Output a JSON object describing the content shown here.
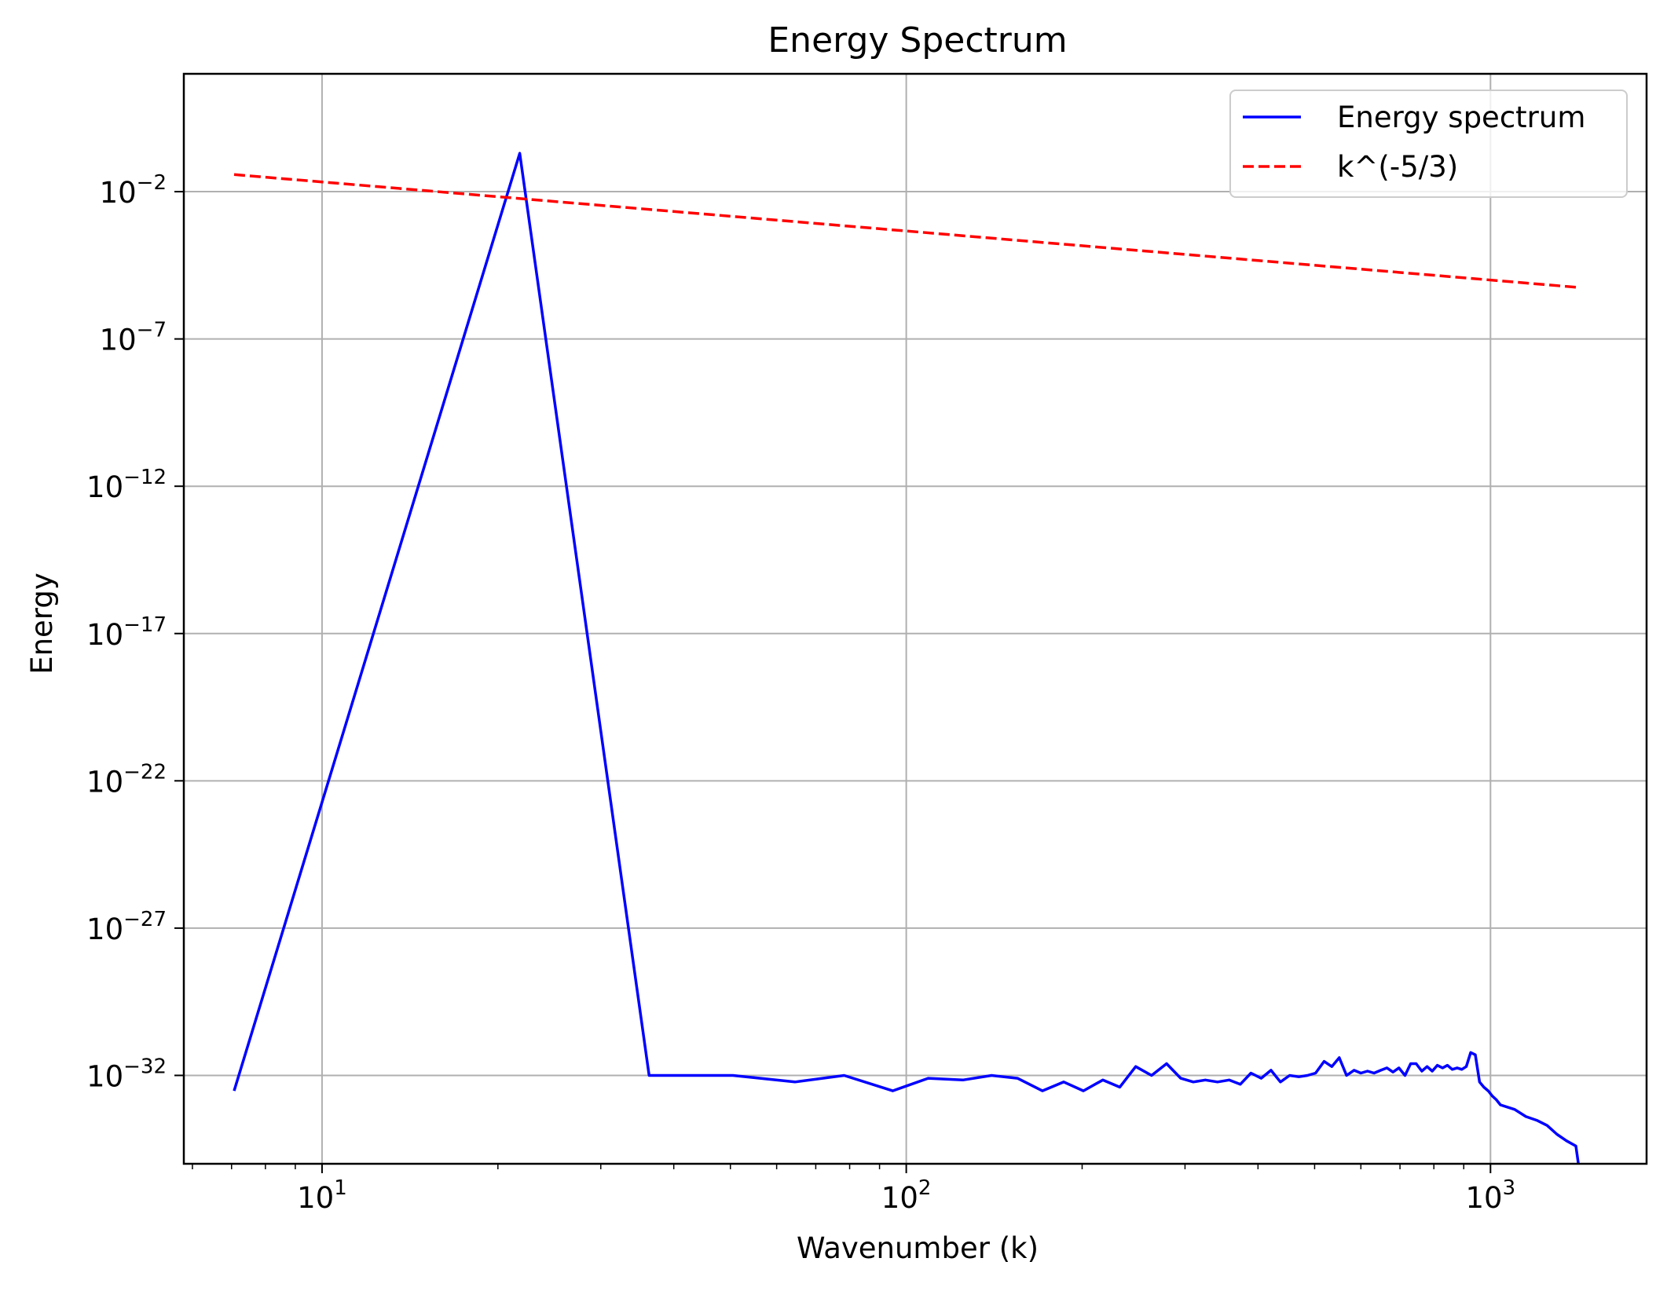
{
  "chart_data": {
    "type": "line",
    "title": "Energy Spectrum",
    "xlabel": "Wavenumber (k)",
    "ylabel": "Energy",
    "xscale": "log",
    "yscale": "log",
    "xlim": [
      5.8,
      1850
    ],
    "ylim": [
      1e-35,
      100.0
    ],
    "grid": true,
    "legend_position": "top-right",
    "x_ticks": [
      {
        "base": "10",
        "exp": "1",
        "value": 10
      },
      {
        "base": "10",
        "exp": "2",
        "value": 100
      },
      {
        "base": "10",
        "exp": "3",
        "value": 1000
      }
    ],
    "y_ticks": [
      {
        "base": "10",
        "exp": "−2",
        "value": 0.01
      },
      {
        "base": "10",
        "exp": "−7",
        "value": 1e-07
      },
      {
        "base": "10",
        "exp": "−12",
        "value": 1e-12
      },
      {
        "base": "10",
        "exp": "−17",
        "value": 1e-17
      },
      {
        "base": "10",
        "exp": "−22",
        "value": 1e-22
      },
      {
        "base": "10",
        "exp": "−27",
        "value": 1e-27
      },
      {
        "base": "10",
        "exp": "−32",
        "value": 1e-32
      }
    ],
    "series": [
      {
        "name": "Energy spectrum",
        "color": "#0000ff",
        "style": "solid",
        "x": [
          7.07,
          21.8,
          36.3,
          50.5,
          64.5,
          78.3,
          94.8,
          109,
          125,
          140,
          155,
          171,
          186,
          201,
          217,
          232,
          247,
          263,
          279,
          295,
          310,
          325,
          341,
          357,
          373,
          389,
          405,
          421,
          437,
          453,
          470,
          486,
          502,
          519,
          535,
          551,
          567,
          584,
          600,
          616,
          632,
          649,
          665,
          681,
          697,
          714,
          730,
          746,
          763,
          779,
          795,
          811,
          828,
          844,
          860,
          877,
          893,
          909,
          925,
          942,
          958,
          974,
          991,
          1007,
          1023,
          1040,
          1100,
          1150,
          1200,
          1250,
          1300,
          1350,
          1400,
          1414
        ],
        "y": [
          3e-33,
          0.2,
          1e-32,
          1e-32,
          6e-33,
          1e-32,
          3e-33,
          8e-33,
          7e-33,
          1e-32,
          8e-33,
          3e-33,
          6e-33,
          3e-33,
          7e-33,
          4e-33,
          2e-32,
          1e-32,
          2.5e-32,
          8e-33,
          6e-33,
          7e-33,
          6e-33,
          7e-33,
          5e-33,
          1.2e-32,
          8e-33,
          1.5e-32,
          6e-33,
          1e-32,
          9e-33,
          1e-32,
          1.2e-32,
          3e-32,
          2e-32,
          4e-32,
          1e-32,
          1.5e-32,
          1.2e-32,
          1.4e-32,
          1.2e-32,
          1.5e-32,
          1.8e-32,
          1.3e-32,
          1.8e-32,
          1e-32,
          2.5e-32,
          2.5e-32,
          1.4e-32,
          2e-32,
          1.4e-32,
          2.2e-32,
          1.8e-32,
          2.2e-32,
          1.6e-32,
          1.8e-32,
          1.6e-32,
          2e-32,
          6e-32,
          5e-32,
          6e-33,
          4e-33,
          3e-33,
          2e-33,
          1.5e-33,
          1e-33,
          7e-34,
          4e-34,
          3e-34,
          2e-34,
          1e-34,
          6e-35,
          4e-35,
          1e-35
        ]
      },
      {
        "name": "k^(-5/3)",
        "color": "#ff0000",
        "style": "dashed",
        "x": [
          7.07,
          1414
        ],
        "y": [
          0.038,
          5.6e-06
        ]
      }
    ]
  }
}
